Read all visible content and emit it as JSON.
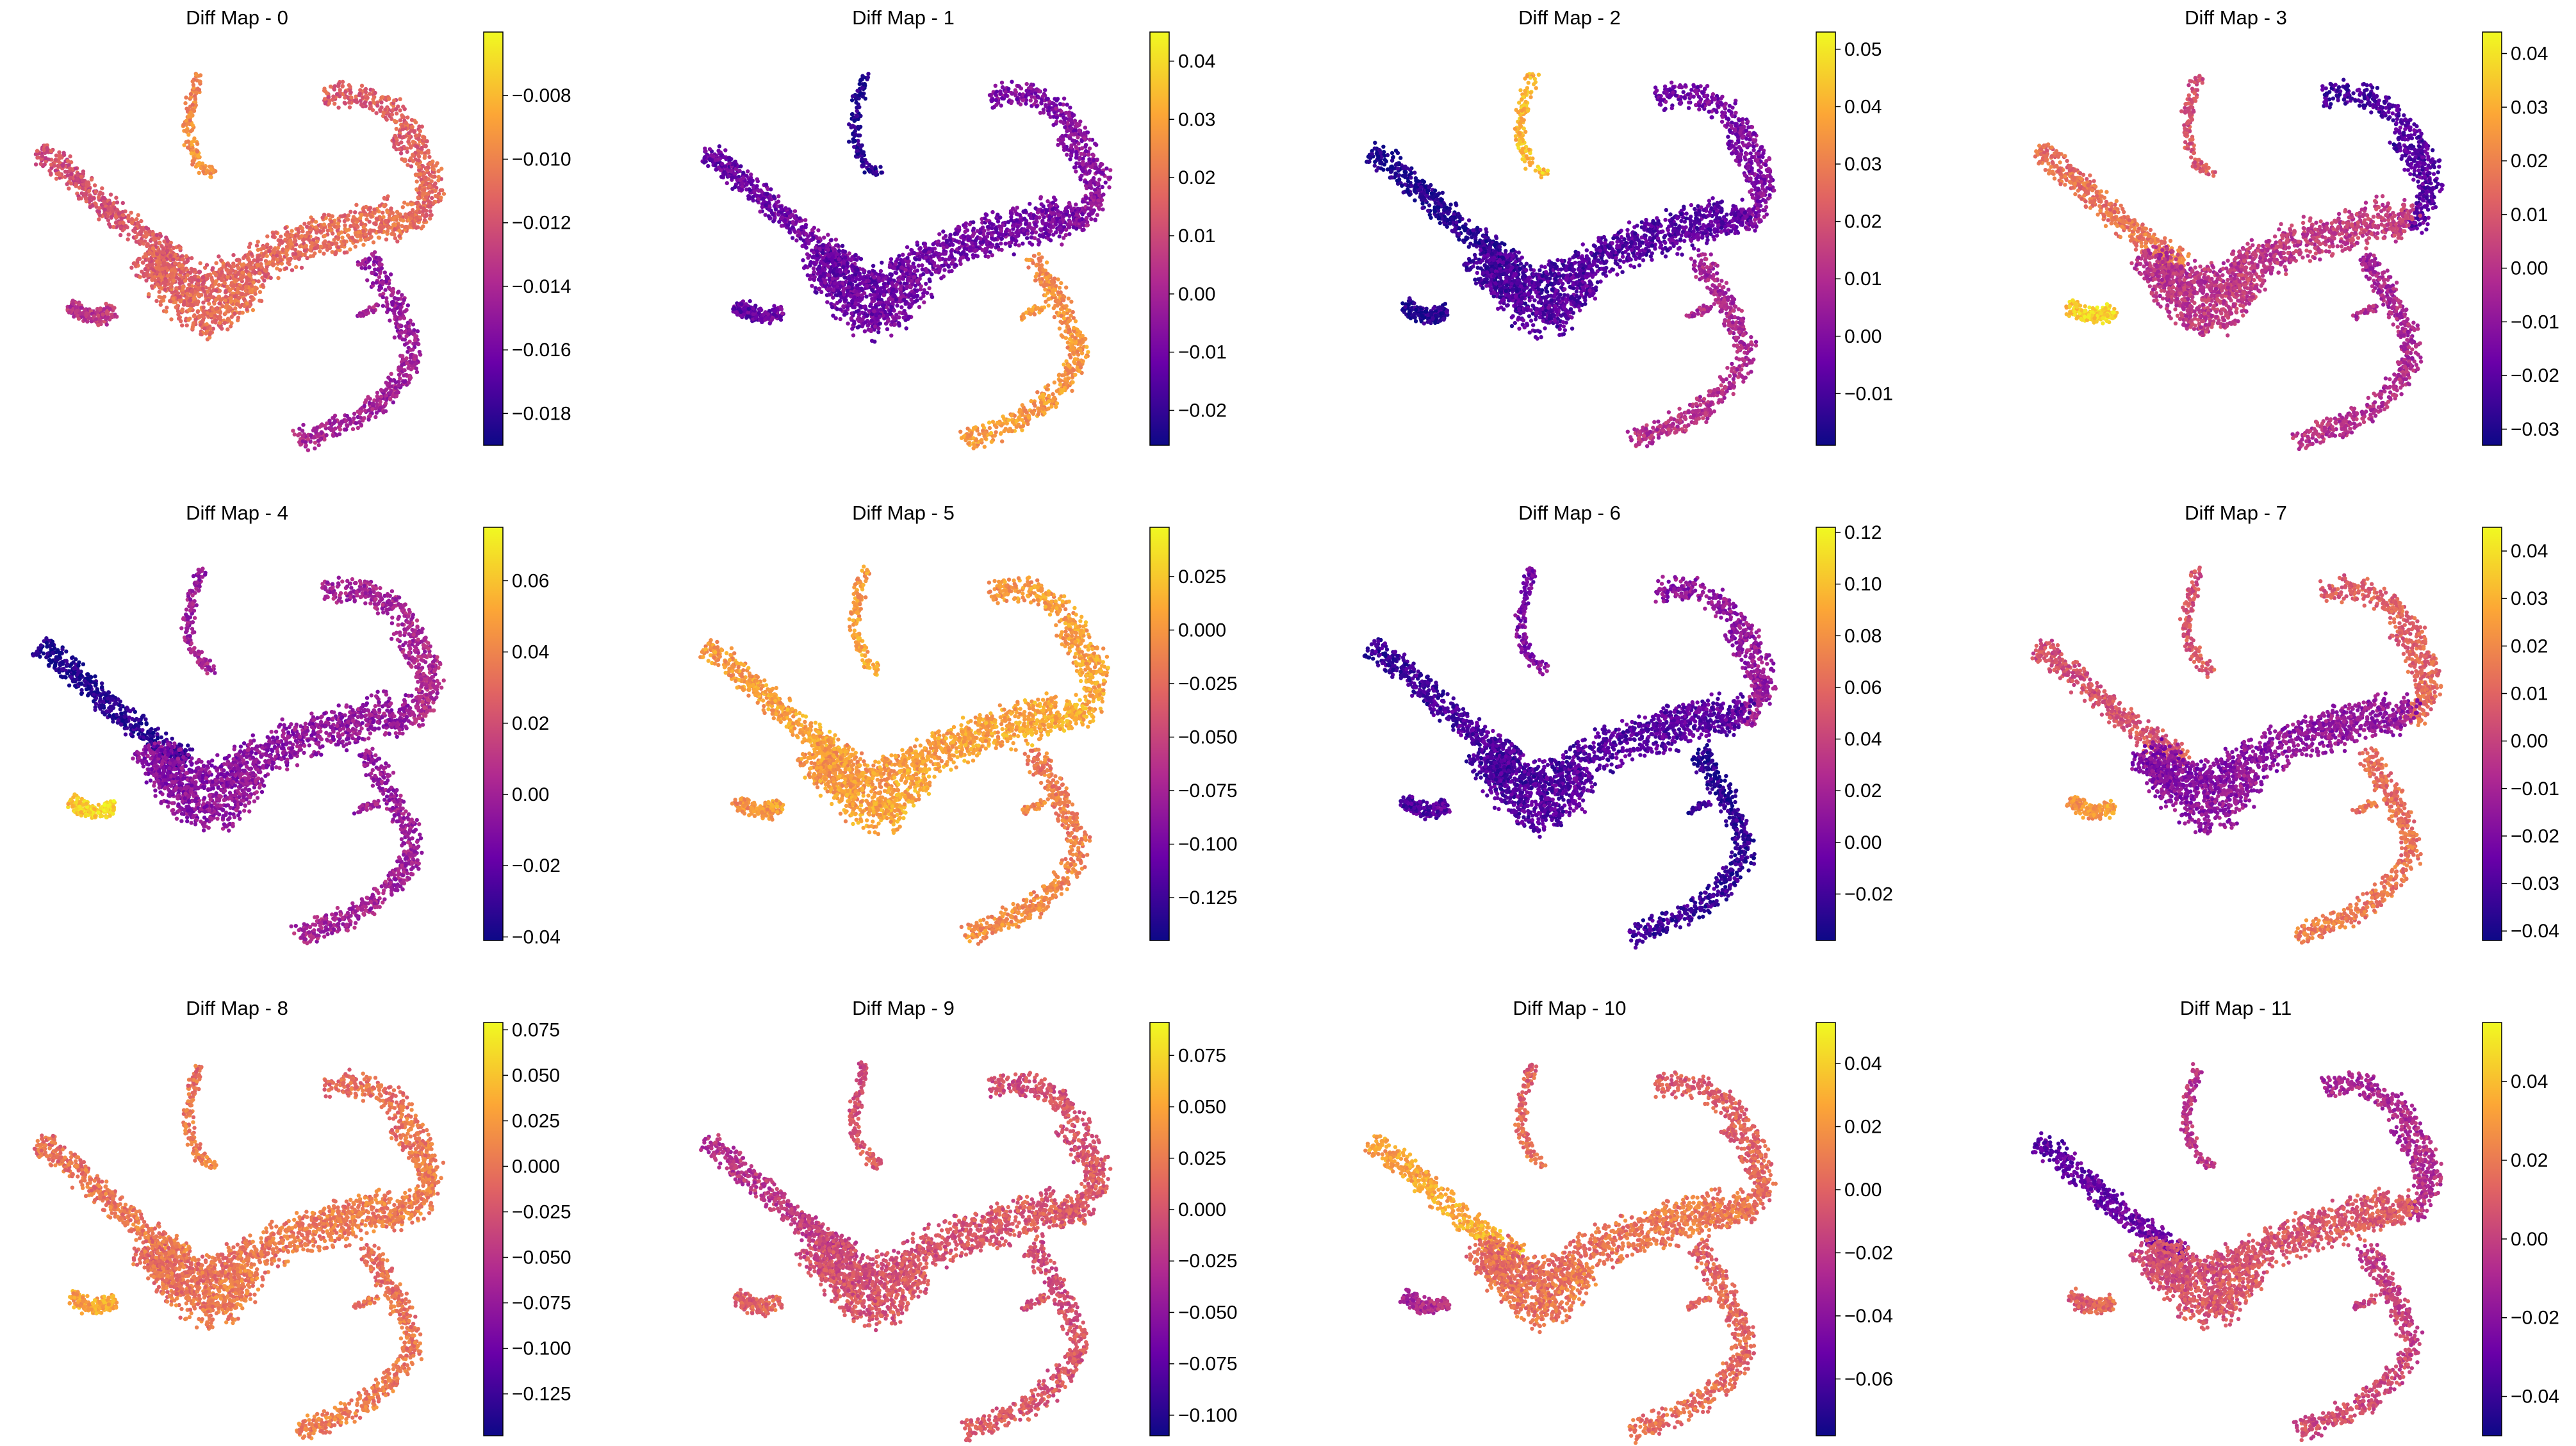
{
  "figure": {
    "colormap": "plasma",
    "colormap_stops": [
      "#0d0887",
      "#6a00a8",
      "#b12a90",
      "#e16462",
      "#fca636",
      "#f0f921"
    ]
  },
  "chart_data": [
    {
      "type": "scatter",
      "title": "Diff Map - 0",
      "colorbar": {
        "vmin": -0.019,
        "vmax": -0.006,
        "ticks": [
          -0.008,
          -0.01,
          -0.012,
          -0.014,
          -0.016,
          -0.018
        ],
        "tick_labels": [
          "−0.008",
          "−0.010",
          "−0.012",
          "−0.014",
          "−0.016",
          "−0.018"
        ]
      },
      "regions": {
        "top_arm": 0.72,
        "mid_left_arm": 0.55,
        "right_loop": 0.6,
        "bottom_arm": 0.35,
        "center_body": 0.62,
        "left_fan": 0.45
      }
    },
    {
      "type": "scatter",
      "title": "Diff Map - 1",
      "colorbar": {
        "vmin": -0.026,
        "vmax": 0.045,
        "ticks": [
          0.04,
          0.03,
          0.02,
          0.01,
          0.0,
          -0.01,
          -0.02
        ],
        "tick_labels": [
          "0.04",
          "0.03",
          "0.02",
          "0.01",
          "0.00",
          "−0.01",
          "−0.02"
        ]
      },
      "regions": {
        "top_arm": 0.05,
        "mid_left_arm": 0.22,
        "right_loop": 0.28,
        "bottom_arm": 0.75,
        "center_body": 0.22,
        "left_fan": 0.2
      }
    },
    {
      "type": "scatter",
      "title": "Diff Map - 2",
      "colorbar": {
        "vmin": -0.019,
        "vmax": 0.053,
        "ticks": [
          0.05,
          0.04,
          0.03,
          0.02,
          0.01,
          0.0,
          -0.01
        ],
        "tick_labels": [
          "0.05",
          "0.04",
          "0.03",
          "0.02",
          "0.01",
          "0.00",
          "−0.01"
        ]
      },
      "regions": {
        "top_arm": 0.85,
        "mid_left_arm": 0.05,
        "right_loop": 0.25,
        "bottom_arm": 0.4,
        "center_body": 0.15,
        "left_fan": 0.05
      }
    },
    {
      "type": "scatter",
      "title": "Diff Map - 3",
      "colorbar": {
        "vmin": -0.033,
        "vmax": 0.044,
        "ticks": [
          0.04,
          0.03,
          0.02,
          0.01,
          0.0,
          -0.01,
          -0.02,
          -0.03
        ],
        "tick_labels": [
          "0.04",
          "0.03",
          "0.02",
          "0.01",
          "0.00",
          "−0.01",
          "−0.02",
          "−0.03"
        ]
      },
      "regions": {
        "top_arm": 0.55,
        "mid_left_arm": 0.65,
        "right_loop": 0.15,
        "bottom_arm": 0.4,
        "center_body": 0.45,
        "left_fan": 0.9
      }
    },
    {
      "type": "scatter",
      "title": "Diff Map - 4",
      "colorbar": {
        "vmin": -0.041,
        "vmax": 0.075,
        "ticks": [
          0.06,
          0.04,
          0.02,
          0.0,
          -0.02,
          -0.04
        ],
        "tick_labels": [
          "0.06",
          "0.04",
          "0.02",
          "0.00",
          "−0.02",
          "−0.04"
        ]
      },
      "regions": {
        "top_arm": 0.35,
        "mid_left_arm": 0.05,
        "right_loop": 0.38,
        "bottom_arm": 0.35,
        "center_body": 0.3,
        "left_fan": 0.9
      }
    },
    {
      "type": "scatter",
      "title": "Diff Map - 5",
      "colorbar": {
        "vmin": -0.145,
        "vmax": 0.048,
        "ticks": [
          0.025,
          0.0,
          -0.025,
          -0.05,
          -0.075,
          -0.1,
          -0.125
        ],
        "tick_labels": [
          "0.025",
          "0.000",
          "−0.025",
          "−0.050",
          "−0.075",
          "−0.100",
          "−0.125"
        ]
      },
      "regions": {
        "top_arm": 0.78,
        "mid_left_arm": 0.78,
        "right_loop": 0.78,
        "bottom_arm": 0.7,
        "center_body": 0.78,
        "left_fan": 0.75
      }
    },
    {
      "type": "scatter",
      "title": "Diff Map - 6",
      "colorbar": {
        "vmin": -0.038,
        "vmax": 0.122,
        "ticks": [
          0.12,
          0.1,
          0.08,
          0.06,
          0.04,
          0.02,
          0.0,
          -0.02
        ],
        "tick_labels": [
          "0.12",
          "0.10",
          "0.08",
          "0.06",
          "0.04",
          "0.02",
          "0.00",
          "−0.02"
        ]
      },
      "regions": {
        "top_arm": 0.25,
        "mid_left_arm": 0.12,
        "right_loop": 0.32,
        "bottom_arm": 0.08,
        "center_body": 0.15,
        "left_fan": 0.15
      }
    },
    {
      "type": "scatter",
      "title": "Diff Map - 7",
      "colorbar": {
        "vmin": -0.042,
        "vmax": 0.045,
        "ticks": [
          0.04,
          0.03,
          0.02,
          0.01,
          0.0,
          -0.01,
          -0.02,
          -0.03,
          -0.04
        ],
        "tick_labels": [
          "0.04",
          "0.03",
          "0.02",
          "0.01",
          "0.00",
          "−0.01",
          "−0.02",
          "−0.03",
          "−0.04"
        ]
      },
      "regions": {
        "top_arm": 0.55,
        "mid_left_arm": 0.55,
        "right_loop": 0.6,
        "bottom_arm": 0.65,
        "center_body": 0.3,
        "left_fan": 0.75
      }
    },
    {
      "type": "scatter",
      "title": "Diff Map - 8",
      "colorbar": {
        "vmin": -0.148,
        "vmax": 0.079,
        "ticks": [
          0.075,
          0.05,
          0.025,
          0.0,
          -0.025,
          -0.05,
          -0.075,
          -0.1,
          -0.125
        ],
        "tick_labels": [
          "0.075",
          "0.050",
          "0.025",
          "0.000",
          "−0.025",
          "−0.050",
          "−0.075",
          "−0.100",
          "−0.125"
        ]
      },
      "regions": {
        "top_arm": 0.66,
        "mid_left_arm": 0.66,
        "right_loop": 0.66,
        "bottom_arm": 0.66,
        "center_body": 0.66,
        "left_fan": 0.8
      }
    },
    {
      "type": "scatter",
      "title": "Diff Map - 9",
      "colorbar": {
        "vmin": -0.11,
        "vmax": 0.091,
        "ticks": [
          0.075,
          0.05,
          0.025,
          0.0,
          -0.025,
          -0.05,
          -0.075,
          -0.1
        ],
        "tick_labels": [
          "0.075",
          "0.050",
          "0.025",
          "0.000",
          "−0.025",
          "−0.050",
          "−0.075",
          "−0.100"
        ]
      },
      "regions": {
        "top_arm": 0.55,
        "mid_left_arm": 0.45,
        "right_loop": 0.55,
        "bottom_arm": 0.55,
        "center_body": 0.55,
        "left_fan": 0.6
      }
    },
    {
      "type": "scatter",
      "title": "Diff Map - 10",
      "colorbar": {
        "vmin": -0.078,
        "vmax": 0.053,
        "ticks": [
          0.04,
          0.02,
          0.0,
          -0.02,
          -0.04,
          -0.06
        ],
        "tick_labels": [
          "0.04",
          "0.02",
          "0.00",
          "−0.02",
          "−0.04",
          "−0.06"
        ]
      },
      "regions": {
        "top_arm": 0.62,
        "mid_left_arm": 0.8,
        "right_loop": 0.6,
        "bottom_arm": 0.62,
        "center_body": 0.65,
        "left_fan": 0.4
      }
    },
    {
      "type": "scatter",
      "title": "Diff Map - 11",
      "colorbar": {
        "vmin": -0.05,
        "vmax": 0.055,
        "ticks": [
          0.04,
          0.02,
          0.0,
          -0.02,
          -0.04
        ],
        "tick_labels": [
          "0.04",
          "0.02",
          "0.00",
          "−0.02",
          "−0.04"
        ]
      },
      "regions": {
        "top_arm": 0.45,
        "mid_left_arm": 0.2,
        "right_loop": 0.4,
        "bottom_arm": 0.5,
        "center_body": 0.55,
        "left_fan": 0.6
      }
    }
  ]
}
